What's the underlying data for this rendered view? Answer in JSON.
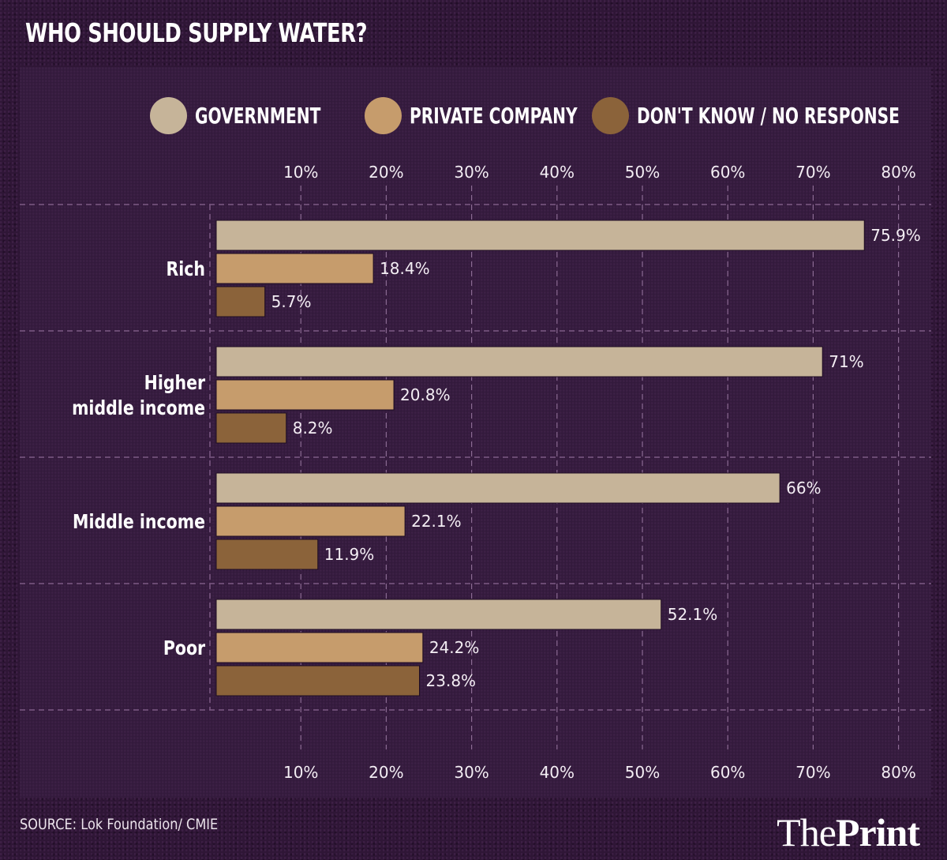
{
  "title": "WHO SHOULD SUPPLY WATER?",
  "source": "SOURCE: Lok Foundation/ CMIE",
  "brand": {
    "part1": "The",
    "part2": "Print"
  },
  "chart_data": {
    "type": "bar",
    "orientation": "horizontal",
    "title": "WHO SHOULD SUPPLY WATER?",
    "xlabel": "",
    "ylabel": "",
    "xlim": [
      0,
      80
    ],
    "grid": true,
    "legend_position": "top",
    "ticks": [
      "10%",
      "20%",
      "30%",
      "40%",
      "50%",
      "60%",
      "70%",
      "80%"
    ],
    "tick_values": [
      10,
      20,
      30,
      40,
      50,
      60,
      70,
      80
    ],
    "categories": [
      "Rich",
      "Higher middle income",
      "Middle income",
      "Poor"
    ],
    "category_lines": [
      [
        "Rich"
      ],
      [
        "Higher",
        "middle income"
      ],
      [
        "Middle income"
      ],
      [
        "Poor"
      ]
    ],
    "series": [
      {
        "name": "GOVERNMENT",
        "color": "#c6b499",
        "values": [
          75.9,
          71,
          66,
          52.1
        ],
        "labels": [
          "75.9%",
          "71%",
          "66%",
          "52.1%"
        ]
      },
      {
        "name": "PRIVATE COMPANY",
        "color": "#c69c6c",
        "values": [
          18.4,
          20.8,
          22.1,
          24.2
        ],
        "labels": [
          "18.4%",
          "20.8%",
          "22.1%",
          "24.2%"
        ]
      },
      {
        "name": "DON'T KNOW / NO RESPONSE",
        "color": "#8b633a",
        "values": [
          5.7,
          8.2,
          11.9,
          23.8
        ],
        "labels": [
          "5.7%",
          "8.2%",
          "11.9%",
          "23.8%"
        ]
      }
    ]
  }
}
